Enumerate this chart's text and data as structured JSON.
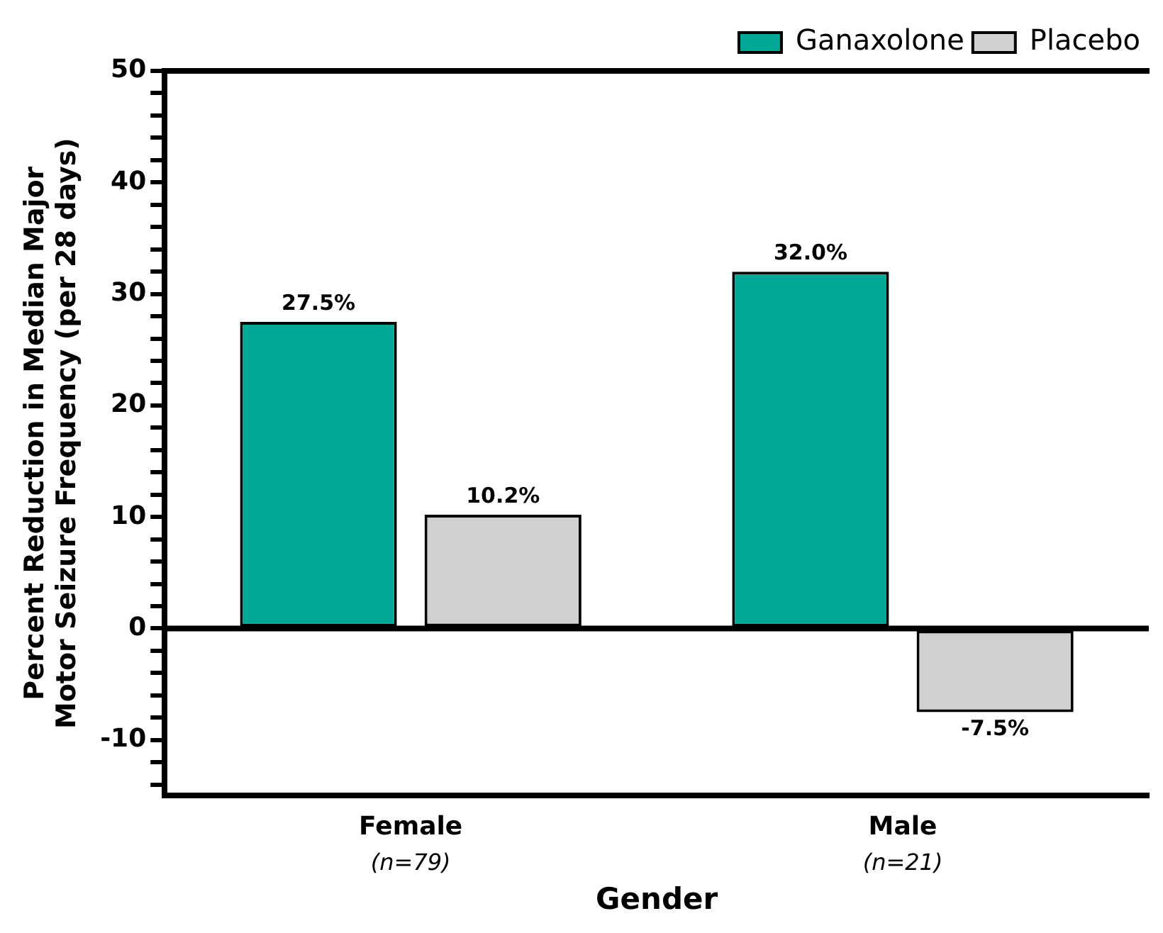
{
  "chart_data": {
    "type": "bar",
    "xlabel": "Gender",
    "ylabel": "Percent Reduction in Median Major\nMotor Seizure Frequency (per 28 days)",
    "categories": [
      "Female",
      "Male"
    ],
    "series": [
      {
        "name": "Ganaxolone",
        "color": "#00a995",
        "values": [
          27.5,
          32.0
        ],
        "value_labels": [
          "27.5%",
          "32.0%"
        ]
      },
      {
        "name": "Placebo",
        "color": "#cfd0cf",
        "values": [
          10.2,
          -7.5
        ],
        "value_labels": [
          "10.2%",
          "-7.5%"
        ]
      }
    ],
    "annotations": [
      "(n=79)",
      "(n=21)"
    ],
    "ylim": [
      -15,
      50
    ],
    "yticks": [
      {
        "value": -14,
        "label": null
      },
      {
        "value": -12,
        "label": null
      },
      -10,
      {
        "value": -8,
        "label": null
      },
      {
        "value": -6,
        "label": null
      },
      {
        "value": -4,
        "label": null
      },
      {
        "value": -2,
        "label": null
      },
      0,
      {
        "value": 2,
        "label": null
      },
      {
        "value": 4,
        "label": null
      },
      {
        "value": 6,
        "label": null
      },
      {
        "value": 8,
        "label": null
      },
      10,
      {
        "value": 12,
        "label": null
      },
      {
        "value": 14,
        "label": null
      },
      {
        "value": 16,
        "label": null
      },
      {
        "value": 18,
        "label": null
      },
      20,
      {
        "value": 22,
        "label": null
      },
      {
        "value": 24,
        "label": null
      },
      {
        "value": 26,
        "label": null
      },
      {
        "value": 28,
        "label": null
      },
      30,
      {
        "value": 32,
        "label": null
      },
      {
        "value": 34,
        "label": null
      },
      {
        "value": 36,
        "label": null
      },
      {
        "value": 38,
        "label": null
      },
      40,
      {
        "value": 42,
        "label": null
      },
      {
        "value": 44,
        "label": null
      },
      {
        "value": 46,
        "label": null
      },
      {
        "value": 48,
        "label": null
      },
      50
    ],
    "ref_lines": [
      {
        "axis": "y",
        "value": 0
      }
    ],
    "grid": false,
    "legend": "top right"
  }
}
